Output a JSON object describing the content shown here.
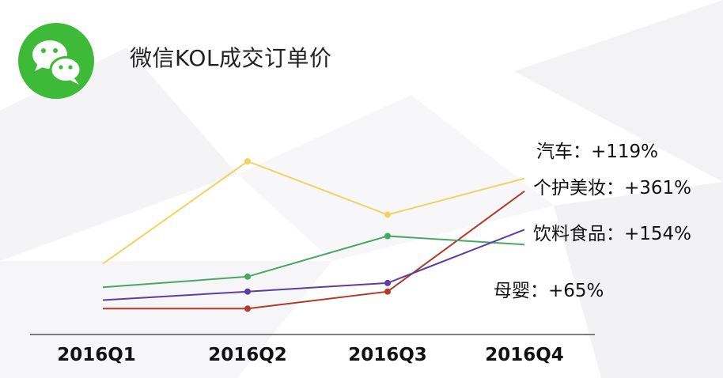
{
  "title": "微信KOL成交订单价",
  "icon": "wechat-icon",
  "colors": {
    "wechat_green": "#3dba37",
    "auto": "#f0d361",
    "beauty": "#b23a2a",
    "beverage": "#4aa865",
    "baby": "#5b3fa0",
    "axis": "#555555"
  },
  "chart_data": {
    "type": "line",
    "categories": [
      "2016Q1",
      "2016Q2",
      "2016Q3",
      "2016Q4"
    ],
    "ylim": [
      0,
      100
    ],
    "grid": false,
    "series": [
      {
        "key": "auto",
        "label": "汽车：+119%",
        "values": [
          32,
          80,
          55,
          72
        ],
        "markers": [
          false,
          true,
          true,
          false
        ]
      },
      {
        "key": "beauty",
        "label": "个护美妆：+361%",
        "values": [
          11,
          11,
          19,
          66
        ],
        "markers": [
          false,
          true,
          true,
          false
        ]
      },
      {
        "key": "beverage",
        "label": "饮料食品：+154%",
        "values": [
          21,
          26,
          45,
          41
        ],
        "markers": [
          false,
          true,
          true,
          false
        ]
      },
      {
        "key": "baby",
        "label": "母婴：+65%",
        "values": [
          15,
          19,
          23,
          48
        ],
        "markers": [
          false,
          true,
          true,
          false
        ]
      }
    ]
  }
}
